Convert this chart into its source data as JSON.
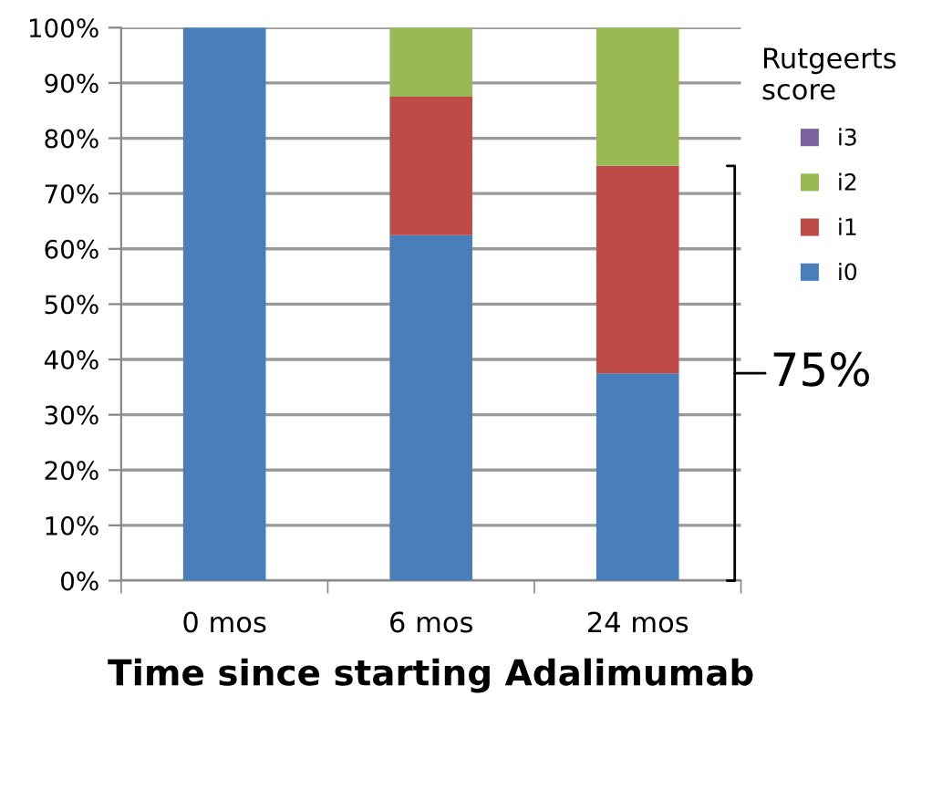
{
  "chart_data": {
    "type": "bar",
    "stacked": true,
    "categories": [
      "0 mos",
      "6 mos",
      "24 mos"
    ],
    "series": [
      {
        "name": "i0",
        "color": "#4a7ebb",
        "values": [
          100,
          62.5,
          37.5
        ]
      },
      {
        "name": "i1",
        "color": "#be4b48",
        "values": [
          0,
          25,
          37.5
        ]
      },
      {
        "name": "i2",
        "color": "#98b954",
        "values": [
          0,
          12.5,
          25
        ]
      },
      {
        "name": "i3",
        "color": "#7d60a0",
        "values": [
          0,
          0,
          0
        ]
      }
    ],
    "xlabel": "Time since starting Adalimumab",
    "legend_title": "Rutgeerts score",
    "legend": "right",
    "ylim": [
      0,
      100
    ],
    "yticks": [
      {
        "value": 0,
        "label": "0%"
      },
      {
        "value": 10,
        "label": "10%"
      },
      {
        "value": 20,
        "label": "20%"
      },
      {
        "value": 30,
        "label": "30%"
      },
      {
        "value": 40,
        "label": "40%"
      },
      {
        "value": 50,
        "label": "50%"
      },
      {
        "value": 60,
        "label": "60%"
      },
      {
        "value": 70,
        "label": "70%"
      },
      {
        "value": 80,
        "label": "80%"
      },
      {
        "value": 90,
        "label": "90%"
      },
      {
        "value": 100,
        "label": "100%"
      }
    ],
    "grid": "y",
    "annotations": [
      "75%"
    ]
  }
}
